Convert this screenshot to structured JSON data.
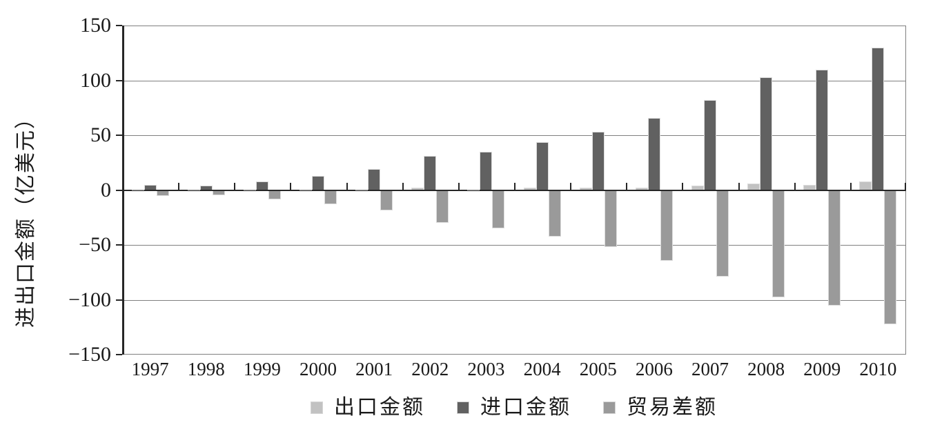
{
  "chart_data": {
    "type": "bar",
    "title": "",
    "xlabel": "",
    "ylabel": "进出口金额（亿美元）",
    "ylim": [
      -150,
      150
    ],
    "y_tick_step": 50,
    "y_ticks": [
      "150",
      "100",
      "50",
      "0",
      "−50",
      "−100",
      "−150"
    ],
    "grid": true,
    "legend_position": "bottom",
    "categories": [
      "1997",
      "1998",
      "1999",
      "2000",
      "2001",
      "2002",
      "2003",
      "2004",
      "2005",
      "2006",
      "2007",
      "2008",
      "2009",
      "2010"
    ],
    "series": [
      {
        "name": "出口金额",
        "key": "export-amount",
        "color": "#c2c2c2",
        "values": [
          0.5,
          0.3,
          0.5,
          1,
          1,
          2,
          1,
          2,
          2,
          2,
          4,
          6,
          5,
          8
        ]
      },
      {
        "name": "进口金额",
        "key": "import-amount",
        "color": "#616161",
        "values": [
          5,
          4,
          8,
          13,
          19,
          31,
          35,
          44,
          53,
          66,
          82,
          103,
          110,
          130
        ]
      },
      {
        "name": "贸易差额",
        "key": "trade-balance",
        "color": "#9a9a9a",
        "values": [
          -5,
          -4,
          -8,
          -12,
          -18,
          -29,
          -34,
          -42,
          -51,
          -64,
          -78,
          -97,
          -105,
          -122
        ]
      }
    ],
    "colors": {
      "axis": "#262626",
      "gridline": "#7f7f7f",
      "text": "#1a1a1a",
      "bar_border": "#dcdcdc"
    }
  }
}
